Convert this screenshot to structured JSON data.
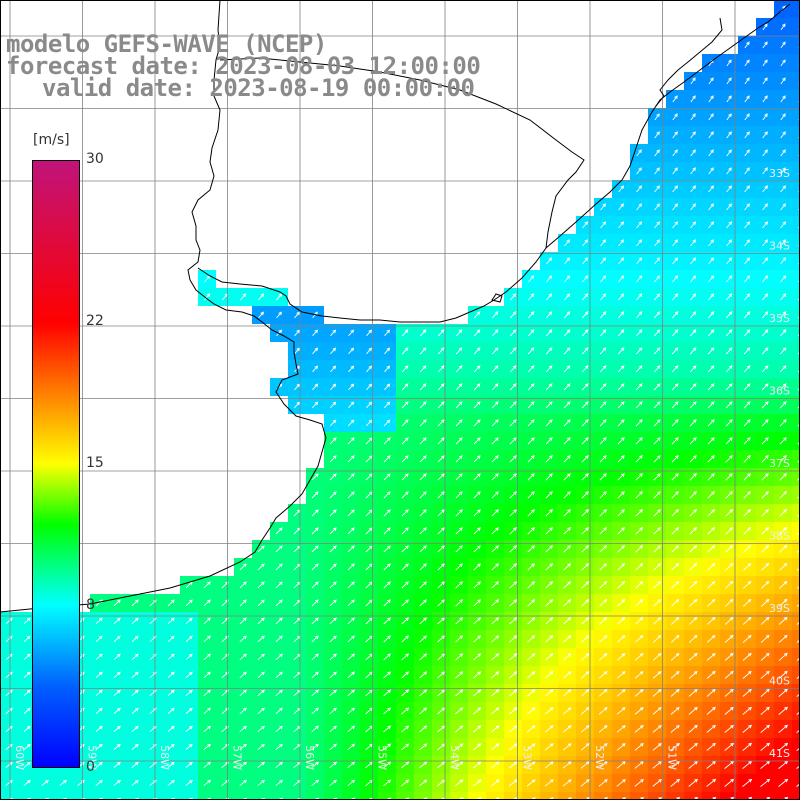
{
  "title": {
    "line1": "modelo GEFS-WAVE (NCEP)",
    "line2": "forecast date: 2023-08-03 12:00:00",
    "line3": "valid date: 2023-08-19 00:00:00"
  },
  "colorbar": {
    "unit": "[m/s]",
    "ticks": [
      {
        "label": "30",
        "value": 30
      },
      {
        "label": "22",
        "value": 22
      },
      {
        "label": "15",
        "value": 15
      },
      {
        "label": "8",
        "value": 8
      },
      {
        "label": "0",
        "value": 0
      }
    ],
    "stops": [
      {
        "value": 0,
        "color": "#0000ff"
      },
      {
        "value": 4,
        "color": "#0060ff"
      },
      {
        "value": 8,
        "color": "#00ffff"
      },
      {
        "value": 12,
        "color": "#00ff00"
      },
      {
        "value": 15,
        "color": "#ffff00"
      },
      {
        "value": 22,
        "color": "#ff0000"
      },
      {
        "value": 30,
        "color": "#c0137a"
      }
    ]
  },
  "latitude_labels": [
    "33S",
    "34S",
    "35S",
    "36S",
    "37S",
    "38S",
    "39S",
    "40S",
    "41S"
  ],
  "longitude_labels": [
    "60W",
    "59W",
    "58W",
    "57W",
    "56W",
    "55W",
    "54W",
    "53W",
    "52W",
    "51W"
  ],
  "colors": {
    "grid": "#808080",
    "coast": "#000000",
    "arrow": "#ffffff",
    "title": "#8a8a8a"
  }
}
